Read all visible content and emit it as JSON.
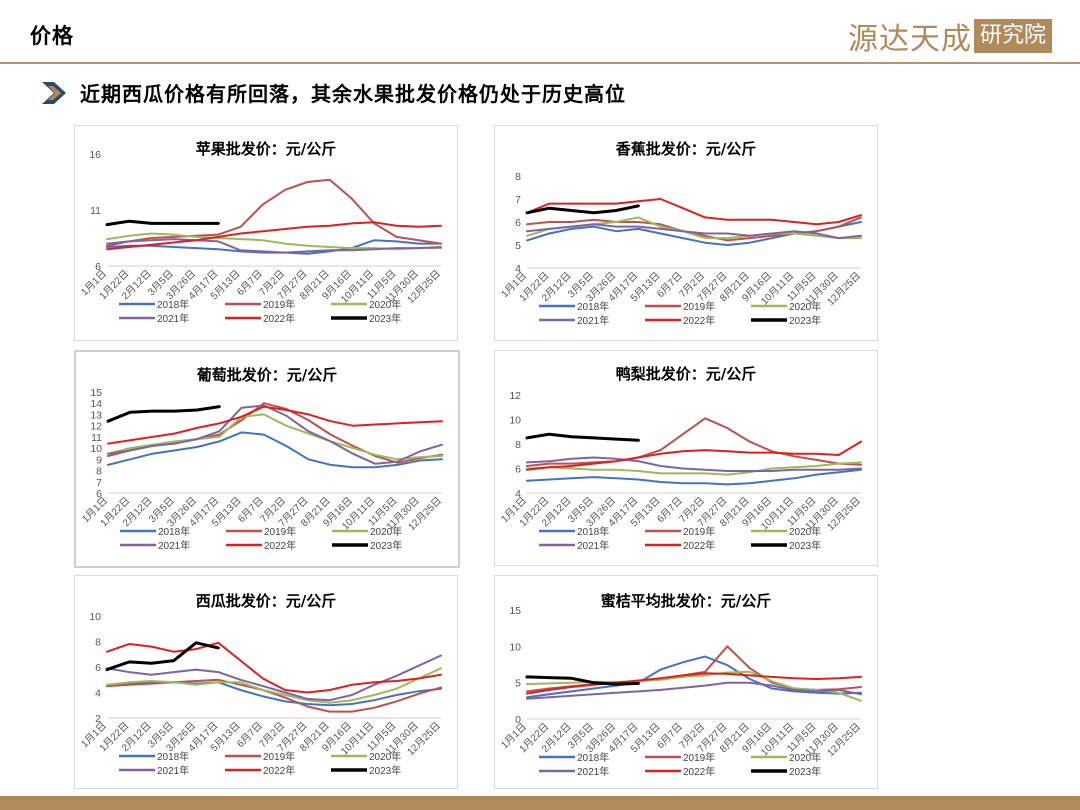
{
  "header": {
    "title": "价格",
    "logo_main": "源达天成",
    "logo_box": "研究院"
  },
  "subtitle": "近期西瓜价格有所回落，其余水果批发价格仍处于历史高位",
  "legend_years": [
    "2018年",
    "2019年",
    "2020年",
    "2021年",
    "2022年",
    "2023年"
  ],
  "colors": {
    "2018年": "#4472c4",
    "2019年": "#c0504d",
    "2020年": "#9bbb59",
    "2021年": "#8064a2",
    "2022年": "#e01f1f",
    "2023年": "#000000"
  },
  "x_ticks": [
    "1月1日",
    "1月22日",
    "2月12日",
    "3月5日",
    "3月26日",
    "4月17日",
    "5月13日",
    "6月7日",
    "7月2日",
    "7月27日",
    "8月21日",
    "9月16日",
    "10月11日",
    "11月5日",
    "11月30日",
    "12月25日"
  ],
  "chart_data": [
    {
      "type": "line",
      "title": "苹果批发价：元/公斤",
      "ylim": [
        6,
        16
      ],
      "yticks": [
        6,
        11,
        16
      ],
      "series": [
        {
          "name": "2018年",
          "values": [
            7.7,
            7.8,
            7.8,
            7.7,
            7.6,
            7.5,
            7.3,
            7.2,
            7.2,
            7.1,
            7.3,
            7.6,
            8.3,
            8.2,
            8.0,
            8.0
          ]
        },
        {
          "name": "2019年",
          "values": [
            7.8,
            8.2,
            8.5,
            8.6,
            8.7,
            8.8,
            9.5,
            11.5,
            12.8,
            13.5,
            13.7,
            12.0,
            9.8,
            8.6,
            8.3,
            8.0
          ]
        },
        {
          "name": "2020年",
          "values": [
            8.4,
            8.7,
            8.9,
            8.8,
            8.6,
            8.5,
            8.4,
            8.3,
            8.0,
            7.8,
            7.7,
            7.6,
            7.6,
            7.5,
            7.6,
            7.6
          ]
        },
        {
          "name": "2021年",
          "values": [
            8.0,
            8.2,
            8.3,
            8.4,
            8.3,
            8.2,
            7.4,
            7.3,
            7.2,
            7.3,
            7.4,
            7.4,
            7.5,
            7.6,
            7.6,
            7.7
          ]
        },
        {
          "name": "2022年",
          "values": [
            7.5,
            7.7,
            7.9,
            8.1,
            8.3,
            8.6,
            8.9,
            9.1,
            9.3,
            9.5,
            9.6,
            9.8,
            9.9,
            9.6,
            9.5,
            9.6
          ]
        },
        {
          "name": "2023年",
          "values": [
            9.7,
            10.0,
            9.8,
            9.8,
            9.8,
            9.8
          ]
        }
      ]
    },
    {
      "type": "line",
      "title": "香蕉批发价：元/公斤",
      "ylim": [
        4,
        8
      ],
      "yticks": [
        4,
        5,
        6,
        7,
        8
      ],
      "series": [
        {
          "name": "2018年",
          "values": [
            5.2,
            5.5,
            5.7,
            5.8,
            5.6,
            5.7,
            5.5,
            5.3,
            5.1,
            5.0,
            5.1,
            5.3,
            5.5,
            5.6,
            5.8,
            6.0
          ]
        },
        {
          "name": "2019年",
          "values": [
            5.9,
            6.0,
            6.0,
            6.1,
            6.0,
            6.0,
            5.9,
            5.6,
            5.4,
            5.2,
            5.3,
            5.4,
            5.5,
            5.6,
            5.8,
            6.2
          ]
        },
        {
          "name": "2020年",
          "values": [
            5.4,
            5.7,
            5.8,
            5.9,
            6.0,
            6.2,
            5.8,
            5.6,
            5.3,
            5.3,
            5.4,
            5.5,
            5.5,
            5.4,
            5.3,
            5.3
          ]
        },
        {
          "name": "2021年",
          "values": [
            5.6,
            5.7,
            5.8,
            5.9,
            5.8,
            5.8,
            5.7,
            5.6,
            5.5,
            5.5,
            5.4,
            5.5,
            5.6,
            5.5,
            5.3,
            5.4
          ]
        },
        {
          "name": "2022年",
          "values": [
            6.4,
            6.8,
            6.8,
            6.8,
            6.8,
            6.9,
            7.0,
            6.6,
            6.2,
            6.1,
            6.1,
            6.1,
            6.0,
            5.9,
            6.0,
            6.3
          ]
        },
        {
          "name": "2023年",
          "values": [
            6.4,
            6.6,
            6.5,
            6.4,
            6.5,
            6.7
          ]
        }
      ]
    },
    {
      "type": "line",
      "title": "葡萄批发价：元/公斤",
      "ylim": [
        6,
        15
      ],
      "yticks": [
        6,
        7,
        8,
        9,
        10,
        11,
        12,
        13,
        14,
        15
      ],
      "series": [
        {
          "name": "2018年",
          "values": [
            8.5,
            9.0,
            9.5,
            9.8,
            10.1,
            10.6,
            11.4,
            11.2,
            10.2,
            9.0,
            8.5,
            8.3,
            8.3,
            8.5,
            8.9,
            9.0
          ]
        },
        {
          "name": "2019年",
          "values": [
            9.3,
            9.8,
            10.2,
            10.5,
            10.8,
            11.2,
            12.5,
            14.0,
            13.5,
            12.5,
            11.2,
            10.2,
            9.3,
            8.7,
            9.1,
            9.4
          ]
        },
        {
          "name": "2020年",
          "values": [
            9.5,
            10.0,
            10.3,
            10.6,
            10.8,
            11.0,
            12.8,
            13.0,
            12.0,
            11.3,
            10.6,
            10.0,
            9.4,
            9.0,
            9.2,
            9.3
          ]
        },
        {
          "name": "2021年",
          "values": [
            9.5,
            9.8,
            10.2,
            10.4,
            10.8,
            11.5,
            13.6,
            13.8,
            12.9,
            11.5,
            10.6,
            9.5,
            8.6,
            8.8,
            9.7,
            10.3
          ]
        },
        {
          "name": "2022年",
          "values": [
            10.4,
            10.7,
            11.0,
            11.3,
            11.8,
            12.2,
            12.8,
            13.7,
            13.4,
            13.0,
            12.4,
            12.0,
            12.1,
            12.2,
            12.3,
            12.4
          ]
        },
        {
          "name": "2023年",
          "values": [
            12.4,
            13.2,
            13.3,
            13.3,
            13.4,
            13.7
          ]
        }
      ]
    },
    {
      "type": "line",
      "title": "鸭梨批发价：元/公斤",
      "ylim": [
        4,
        12
      ],
      "yticks": [
        4,
        6,
        8,
        10,
        12
      ],
      "series": [
        {
          "name": "2018年",
          "values": [
            5.0,
            5.1,
            5.2,
            5.3,
            5.2,
            5.1,
            4.9,
            4.8,
            4.8,
            4.7,
            4.8,
            5.0,
            5.2,
            5.5,
            5.7,
            5.9
          ]
        },
        {
          "name": "2019年",
          "values": [
            6.2,
            6.4,
            6.4,
            6.5,
            6.6,
            6.9,
            7.5,
            8.8,
            10.1,
            9.3,
            8.2,
            7.4,
            7.0,
            6.7,
            6.4,
            6.3
          ]
        },
        {
          "name": "2020年",
          "values": [
            6.0,
            6.1,
            6.0,
            5.9,
            5.9,
            5.8,
            5.6,
            5.6,
            5.6,
            5.5,
            5.7,
            6.0,
            6.1,
            6.2,
            6.4,
            6.5
          ]
        },
        {
          "name": "2021年",
          "values": [
            6.5,
            6.6,
            6.8,
            6.9,
            6.8,
            6.6,
            6.2,
            6.0,
            5.9,
            5.8,
            5.8,
            5.8,
            5.9,
            5.9,
            5.9,
            6.0
          ]
        },
        {
          "name": "2022年",
          "values": [
            5.9,
            6.1,
            6.2,
            6.4,
            6.6,
            6.9,
            7.2,
            7.4,
            7.5,
            7.4,
            7.3,
            7.3,
            7.2,
            7.2,
            7.1,
            8.2
          ]
        },
        {
          "name": "2023年",
          "values": [
            8.5,
            8.8,
            8.6,
            8.5,
            8.4,
            8.3
          ]
        }
      ]
    },
    {
      "type": "line",
      "title": "西瓜批发价：元/公斤",
      "ylim": [
        2,
        10
      ],
      "yticks": [
        2,
        4,
        6,
        8,
        10
      ],
      "series": [
        {
          "name": "2018年",
          "values": [
            4.5,
            4.7,
            4.8,
            4.8,
            4.7,
            4.8,
            4.2,
            3.7,
            3.3,
            3.1,
            3.0,
            3.1,
            3.4,
            3.8,
            4.1,
            4.3
          ]
        },
        {
          "name": "2019年",
          "values": [
            4.5,
            4.6,
            4.7,
            4.8,
            4.9,
            5.0,
            4.6,
            4.2,
            3.6,
            2.9,
            2.5,
            2.5,
            2.8,
            3.3,
            3.9,
            4.4
          ]
        },
        {
          "name": "2020年",
          "values": [
            4.6,
            4.8,
            4.9,
            4.8,
            4.6,
            4.8,
            4.8,
            4.2,
            3.8,
            3.4,
            3.2,
            3.4,
            3.8,
            4.3,
            5.1,
            5.9
          ]
        },
        {
          "name": "2021年",
          "values": [
            5.9,
            5.6,
            5.4,
            5.6,
            5.8,
            5.6,
            5.0,
            4.5,
            4.0,
            3.5,
            3.4,
            3.8,
            4.6,
            5.3,
            6.1,
            6.9
          ]
        },
        {
          "name": "2022年",
          "values": [
            7.2,
            7.8,
            7.6,
            7.2,
            7.4,
            7.9,
            6.5,
            5.1,
            4.2,
            4.0,
            4.2,
            4.6,
            4.8,
            4.9,
            5.1,
            5.4
          ]
        },
        {
          "name": "2023年",
          "values": [
            5.8,
            6.4,
            6.3,
            6.5,
            7.9,
            7.5
          ]
        }
      ]
    },
    {
      "type": "line",
      "title": "蜜桔平均批发价：元/公斤",
      "ylim": [
        0,
        15
      ],
      "yticks": [
        0,
        5,
        10,
        15
      ],
      "series": [
        {
          "name": "2018年",
          "values": [
            3.0,
            3.4,
            3.8,
            4.2,
            4.6,
            5.0,
            6.8,
            7.8,
            8.6,
            7.4,
            5.5,
            4.2,
            3.8,
            3.6,
            3.5,
            3.6
          ]
        },
        {
          "name": "2019年",
          "values": [
            3.8,
            4.2,
            4.5,
            4.8,
            5.0,
            5.2,
            5.5,
            6.0,
            6.5,
            10.0,
            7.0,
            5.0,
            4.2,
            4.0,
            4.1,
            4.4
          ]
        },
        {
          "name": "2020年",
          "values": [
            4.8,
            4.9,
            5.0,
            5.1,
            5.1,
            5.2,
            5.4,
            5.8,
            6.0,
            6.4,
            6.5,
            5.2,
            4.2,
            4.0,
            3.6,
            2.5
          ]
        },
        {
          "name": "2021年",
          "values": [
            2.8,
            3.0,
            3.2,
            3.4,
            3.6,
            3.8,
            4.0,
            4.3,
            4.6,
            5.0,
            5.0,
            4.6,
            4.0,
            3.8,
            4.0,
            3.4
          ]
        },
        {
          "name": "2022年",
          "values": [
            3.5,
            4.0,
            4.4,
            4.7,
            5.0,
            5.3,
            5.6,
            6.0,
            6.3,
            6.2,
            6.0,
            5.8,
            5.6,
            5.5,
            5.6,
            5.8
          ]
        },
        {
          "name": "2023年",
          "values": [
            5.8,
            5.7,
            5.6,
            5.0,
            4.8,
            4.9
          ]
        }
      ]
    }
  ]
}
